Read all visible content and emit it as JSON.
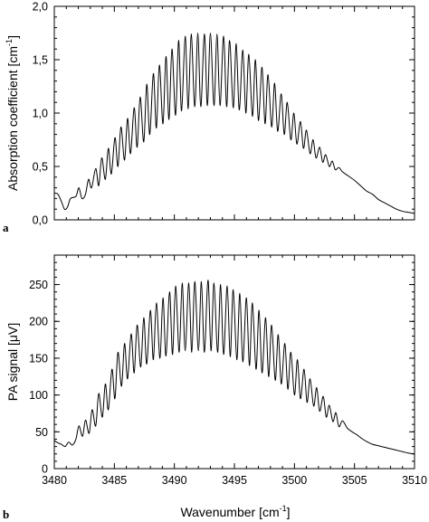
{
  "chart_data": [
    {
      "panel_label": "a",
      "type": "line",
      "xlabel": "",
      "ylabel_main": "Absorption coefficient [cm",
      "ylabel_sup": "-1",
      "ylabel_close": "]",
      "xlim": [
        3480,
        3510
      ],
      "ylim": [
        0.0,
        2.0
      ],
      "x_ticks": [
        3480,
        3485,
        3490,
        3495,
        3500,
        3505,
        3510
      ],
      "x_tick_labels_shown": false,
      "y_ticks": [
        0.0,
        0.5,
        1.0,
        1.5,
        2.0
      ],
      "y_tick_labels": [
        "0,0",
        "0,5",
        "1,0",
        "1,5",
        "2,0"
      ],
      "grid": false,
      "series": [
        {
          "x": [
            3480.0,
            3480.3,
            3480.6,
            3480.85,
            3481.1,
            3481.35,
            3481.8,
            3482.05,
            3482.3,
            3482.6,
            3482.85,
            3483.1,
            3483.45,
            3483.7,
            3483.95,
            3484.25,
            3484.5,
            3484.75,
            3485.05,
            3485.3,
            3485.55,
            3485.85,
            3486.1,
            3486.35,
            3486.65,
            3486.9,
            3487.15,
            3487.45,
            3487.7,
            3487.95,
            3488.25,
            3488.5,
            3488.75,
            3489.05,
            3489.3,
            3489.55,
            3489.8,
            3490.1,
            3490.35,
            3490.6,
            3490.9,
            3491.15,
            3491.4,
            3491.7,
            3491.95,
            3492.2,
            3492.5,
            3492.75,
            3493.0,
            3493.3,
            3493.55,
            3493.8,
            3494.1,
            3494.35,
            3494.6,
            3494.9,
            3495.15,
            3495.4,
            3495.7,
            3495.95,
            3496.2,
            3496.5,
            3496.75,
            3497.0,
            3497.3,
            3497.55,
            3497.8,
            3498.1,
            3498.35,
            3498.6,
            3498.9,
            3499.15,
            3499.4,
            3499.7,
            3499.95,
            3500.2,
            3500.5,
            3500.75,
            3501.0,
            3501.3,
            3501.55,
            3501.8,
            3502.1,
            3502.35,
            3502.6,
            3502.9,
            3503.15,
            3503.4,
            3503.7,
            3504.0,
            3504.5,
            3505.0,
            3505.5,
            3506.0,
            3506.5,
            3507.0,
            3507.5,
            3508.0,
            3508.5,
            3509.0,
            3509.5,
            3510.0
          ],
          "y": [
            0.25,
            0.24,
            0.17,
            0.1,
            0.12,
            0.2,
            0.22,
            0.3,
            0.2,
            0.24,
            0.38,
            0.3,
            0.48,
            0.32,
            0.58,
            0.38,
            0.67,
            0.43,
            0.77,
            0.5,
            0.87,
            0.56,
            0.95,
            0.62,
            1.05,
            0.68,
            1.15,
            0.73,
            1.27,
            0.8,
            1.37,
            0.86,
            1.45,
            0.9,
            1.53,
            0.94,
            1.6,
            0.98,
            1.68,
            1.02,
            1.72,
            1.04,
            1.74,
            1.06,
            1.75,
            1.06,
            1.74,
            1.07,
            1.75,
            1.07,
            1.74,
            1.07,
            1.72,
            1.06,
            1.68,
            1.05,
            1.65,
            1.03,
            1.59,
            1.0,
            1.55,
            0.97,
            1.5,
            0.93,
            1.43,
            0.9,
            1.36,
            0.87,
            1.28,
            0.83,
            1.18,
            0.8,
            1.1,
            0.75,
            1.0,
            0.71,
            0.92,
            0.67,
            0.84,
            0.62,
            0.75,
            0.58,
            0.68,
            0.54,
            0.61,
            0.5,
            0.55,
            0.47,
            0.49,
            0.45,
            0.41,
            0.37,
            0.32,
            0.27,
            0.24,
            0.19,
            0.16,
            0.13,
            0.1,
            0.08,
            0.07,
            0.06
          ]
        }
      ]
    },
    {
      "panel_label": "b",
      "type": "line",
      "xlabel_main": "Wavenumber [cm",
      "xlabel_sup": "-1",
      "xlabel_close": "]",
      "ylabel": "PA signal [μV]",
      "xlim": [
        3480,
        3510
      ],
      "ylim": [
        0,
        290
      ],
      "x_ticks": [
        3480,
        3485,
        3490,
        3495,
        3500,
        3505,
        3510
      ],
      "x_tick_labels": [
        "3480",
        "3485",
        "3490",
        "3495",
        "3500",
        "3505",
        "3510"
      ],
      "y_ticks": [
        0,
        50,
        100,
        150,
        200,
        250
      ],
      "y_tick_labels": [
        "0",
        "50",
        "100",
        "150",
        "200",
        "250"
      ],
      "grid": false,
      "series": [
        {
          "x": [
            3480.0,
            3480.3,
            3480.6,
            3480.9,
            3481.2,
            3481.5,
            3481.8,
            3482.05,
            3482.35,
            3482.6,
            3482.9,
            3483.15,
            3483.45,
            3483.7,
            3484.0,
            3484.25,
            3484.5,
            3484.8,
            3485.05,
            3485.3,
            3485.6,
            3485.85,
            3486.1,
            3486.4,
            3486.65,
            3486.9,
            3487.2,
            3487.45,
            3487.7,
            3488.0,
            3488.25,
            3488.5,
            3488.8,
            3489.05,
            3489.3,
            3489.6,
            3489.85,
            3490.1,
            3490.4,
            3490.65,
            3490.9,
            3491.2,
            3491.45,
            3491.7,
            3492.0,
            3492.25,
            3492.5,
            3492.8,
            3493.05,
            3493.3,
            3493.6,
            3493.85,
            3494.1,
            3494.4,
            3494.65,
            3494.9,
            3495.2,
            3495.45,
            3495.7,
            3496.0,
            3496.25,
            3496.5,
            3496.8,
            3497.05,
            3497.3,
            3497.6,
            3497.85,
            3498.1,
            3498.4,
            3498.65,
            3498.9,
            3499.2,
            3499.45,
            3499.7,
            3500.0,
            3500.25,
            3500.5,
            3500.8,
            3501.05,
            3501.3,
            3501.6,
            3501.85,
            3502.1,
            3502.4,
            3502.65,
            3502.9,
            3503.2,
            3503.45,
            3503.7,
            3504.0,
            3504.4,
            3504.8,
            3505.2,
            3505.6,
            3506.0,
            3506.5,
            3507.0,
            3507.5,
            3508.0,
            3508.5,
            3509.0,
            3509.5,
            3510.0
          ],
          "y": [
            38,
            35,
            33,
            30,
            36,
            32,
            40,
            58,
            44,
            66,
            48,
            80,
            58,
            102,
            70,
            115,
            80,
            135,
            95,
            158,
            112,
            170,
            122,
            183,
            130,
            195,
            138,
            205,
            142,
            215,
            148,
            225,
            150,
            232,
            153,
            240,
            155,
            248,
            158,
            252,
            160,
            252,
            158,
            254,
            160,
            254,
            158,
            256,
            160,
            252,
            158,
            250,
            155,
            248,
            152,
            243,
            148,
            238,
            145,
            232,
            140,
            225,
            135,
            215,
            130,
            205,
            125,
            195,
            120,
            182,
            115,
            170,
            108,
            158,
            100,
            148,
            95,
            135,
            90,
            122,
            85,
            110,
            78,
            98,
            70,
            86,
            64,
            76,
            57,
            65,
            55,
            50,
            46,
            41,
            37,
            33,
            31,
            29,
            27,
            25,
            23,
            21,
            20
          ]
        }
      ]
    }
  ]
}
